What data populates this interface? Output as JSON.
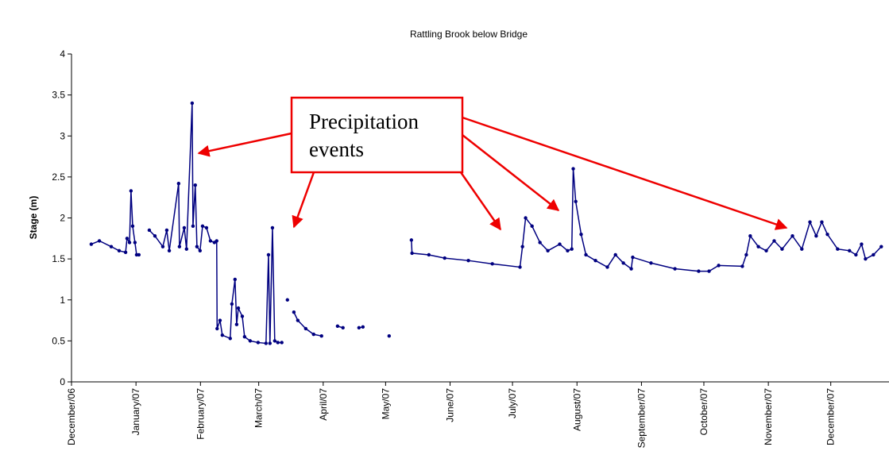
{
  "chart_data": {
    "type": "line",
    "title": "Rattling Brook below Bridge",
    "ylabel": "Stage (m)",
    "annotation": [
      "Precipitation",
      "events"
    ],
    "xlim": [
      0,
      393
    ],
    "ylim": [
      0,
      4
    ],
    "yticks": [
      0,
      0.5,
      1,
      1.5,
      2,
      2.5,
      3,
      3.5,
      4
    ],
    "xticks": [
      {
        "value": 0,
        "label": "December/06"
      },
      {
        "value": 31,
        "label": "January/07"
      },
      {
        "value": 62,
        "label": "February/07"
      },
      {
        "value": 90,
        "label": "March/07"
      },
      {
        "value": 121,
        "label": "April/07"
      },
      {
        "value": 151,
        "label": "May/07"
      },
      {
        "value": 182,
        "label": "June/07"
      },
      {
        "value": 212,
        "label": "July/07"
      },
      {
        "value": 243,
        "label": "August/07"
      },
      {
        "value": 274,
        "label": "September/07"
      },
      {
        "value": 304,
        "label": "October/07"
      },
      {
        "value": 335,
        "label": "November/07"
      },
      {
        "value": 365,
        "label": "December/07"
      }
    ],
    "grid": false,
    "series": [
      {
        "name": "Stage",
        "color": "#000080",
        "x": [
          9.5,
          13.4,
          19.1,
          22.9,
          26,
          26.7,
          27.9,
          28.6,
          29.4,
          30.5,
          31.3,
          32.4,
          null,
          37.4,
          40.1,
          43.9,
          45.8,
          47,
          51.5,
          51.9,
          54.2,
          55.3,
          58,
          58.4,
          59.5,
          60.3,
          61.8,
          63,
          64.9,
          66.8,
          68.7,
          69.8,
          70,
          71.4,
          72.5,
          76.3,
          77.1,
          78.6,
          79.4,
          80.2,
          82.1,
          83.2,
          85.9,
          89.7,
          93.5,
          94.7,
          95.4,
          96.6,
          97.7,
          99.2,
          101.1,
          null,
          103.8,
          null,
          106.9,
          108.8,
          112.6,
          116.4,
          120.2,
          null,
          127.9,
          130.5,
          null,
          138.2,
          140.1,
          null,
          152.7,
          null,
          163.4,
          163.7,
          171.8,
          179.4,
          190.8,
          202.3,
          215.6,
          216.8,
          218.3,
          221.4,
          225.2,
          229,
          234.7,
          238.5,
          240.5,
          241.2,
          242.4,
          245,
          247.3,
          251.9,
          257.6,
          261.5,
          265.3,
          269.1,
          269.8,
          278.6,
          290.1,
          301.5,
          306.5,
          311.1,
          322.5,
          324.4,
          326.3,
          330.2,
          334,
          337.8,
          341.6,
          346.6,
          351.1,
          355,
          358,
          360.7,
          363.4,
          368.3,
          374,
          377.1,
          379.8,
          381.7,
          385.5,
          389.3
        ],
        "values": [
          1.68,
          1.72,
          1.65,
          1.6,
          1.58,
          1.75,
          1.7,
          2.33,
          1.9,
          1.7,
          1.55,
          1.55,
          null,
          1.85,
          1.78,
          1.65,
          1.85,
          1.6,
          2.42,
          1.65,
          1.88,
          1.62,
          3.4,
          1.9,
          2.4,
          1.65,
          1.6,
          1.9,
          1.88,
          1.72,
          1.7,
          1.72,
          0.65,
          0.75,
          0.57,
          0.53,
          0.95,
          1.25,
          0.7,
          0.9,
          0.8,
          0.55,
          0.5,
          0.48,
          0.47,
          1.55,
          0.47,
          1.88,
          0.5,
          0.48,
          0.48,
          null,
          1.0,
          null,
          0.85,
          0.75,
          0.65,
          0.58,
          0.56,
          null,
          0.68,
          0.66,
          null,
          0.66,
          0.67,
          null,
          0.56,
          null,
          1.73,
          1.57,
          1.55,
          1.51,
          1.48,
          1.44,
          1.4,
          1.65,
          2.0,
          1.9,
          1.7,
          1.6,
          1.68,
          1.6,
          1.62,
          2.6,
          2.2,
          1.8,
          1.55,
          1.48,
          1.4,
          1.55,
          1.45,
          1.38,
          1.52,
          1.45,
          1.38,
          1.35,
          1.35,
          1.42,
          1.41,
          1.55,
          1.78,
          1.65,
          1.6,
          1.72,
          1.62,
          1.78,
          1.62,
          1.95,
          1.78,
          1.95,
          1.8,
          1.62,
          1.6,
          1.55,
          1.68,
          1.5,
          1.55,
          1.65
        ]
      }
    ]
  }
}
